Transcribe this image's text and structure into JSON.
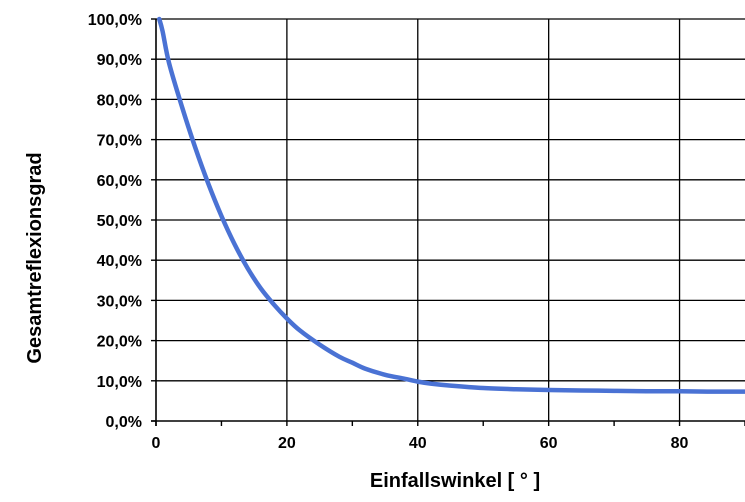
{
  "chart_data": {
    "type": "line",
    "xlabel": "Einfallswinkel [ ° ]",
    "ylabel": "Gesamtreflexionsgrad",
    "xlim": [
      0,
      90
    ],
    "ylim": [
      0,
      100
    ],
    "x_ticks": [
      0,
      20,
      40,
      60,
      80
    ],
    "y_ticks": [
      0,
      10,
      20,
      30,
      40,
      50,
      60,
      70,
      80,
      90,
      100
    ],
    "y_tick_labels": [
      "0,0%",
      "10,0%",
      "20,0%",
      "30,0%",
      "40,0%",
      "50,0%",
      "60,0%",
      "70,0%",
      "80,0%",
      "90,0%",
      "100,0%"
    ],
    "grid": true,
    "legend": "none",
    "line_color": "#4a72d4",
    "series": [
      {
        "x": [
          0.5,
          1,
          2,
          4,
          6,
          8,
          10,
          12,
          14,
          16,
          18,
          20,
          22,
          25,
          28,
          30,
          32,
          35,
          38,
          40,
          42,
          45,
          50,
          55,
          60,
          65,
          70,
          75,
          80,
          85,
          90
        ],
        "values": [
          100,
          97,
          89,
          78,
          68,
          59,
          51,
          44,
          38,
          33,
          29,
          25.5,
          22.5,
          19,
          16,
          14.5,
          13,
          11.5,
          10.5,
          9.8,
          9.3,
          8.8,
          8.2,
          7.9,
          7.7,
          7.6,
          7.5,
          7.4,
          7.4,
          7.3,
          7.3
        ]
      }
    ]
  }
}
